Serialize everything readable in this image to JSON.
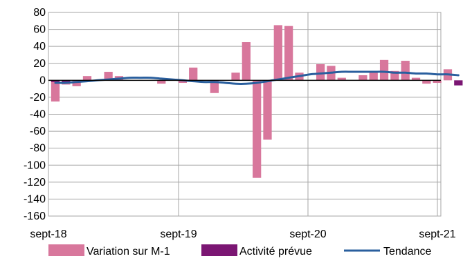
{
  "chart_data": {
    "type": "bar",
    "x_tick_labels": [
      "sept-18",
      "sept-19",
      "sept-20",
      "sept-21"
    ],
    "ylim": [
      -160,
      80
    ],
    "y_ticks": [
      80,
      60,
      40,
      20,
      0,
      -20,
      -40,
      -60,
      -80,
      -100,
      -120,
      -140,
      -160
    ],
    "grid": true,
    "legend_position": "bottom",
    "colors": {
      "variation": "#d8779c",
      "activite": "#7b1673",
      "tendance": "#2a5f9e",
      "grid": "#a6a6a6",
      "axis": "#000000"
    },
    "series": [
      {
        "name": "Variation sur M-1",
        "kind": "bar",
        "values": [
          -25,
          -5,
          -7,
          5,
          0,
          10,
          5,
          0,
          0,
          0,
          -4,
          0,
          -3,
          15,
          0,
          -15,
          0,
          9,
          45,
          -115,
          -70,
          65,
          64,
          9,
          0,
          19,
          17,
          3,
          0,
          6,
          9,
          24,
          11,
          23,
          3,
          -4,
          -3,
          13
        ]
      },
      {
        "name": "Activité prévue",
        "kind": "bar",
        "values": [
          -2,
          -2,
          0,
          0,
          0,
          0,
          0,
          0,
          0,
          0,
          0,
          0,
          0,
          0,
          0,
          0,
          0,
          0,
          0,
          0,
          0,
          0,
          0,
          0,
          0,
          0,
          0,
          0,
          0,
          0,
          0,
          0,
          0,
          0,
          0,
          0,
          0,
          0,
          -6
        ]
      },
      {
        "name": "Tendance",
        "kind": "line",
        "values": [
          -3,
          -3,
          -2,
          -1,
          0,
          1,
          2,
          3,
          3,
          3,
          2,
          1,
          0,
          -1,
          -2,
          -2,
          -3,
          -4,
          -4,
          -3,
          -1,
          1,
          3,
          5,
          7,
          8,
          9,
          10,
          10,
          10,
          10,
          10,
          9,
          9,
          8,
          8,
          7,
          7,
          6
        ]
      }
    ]
  }
}
